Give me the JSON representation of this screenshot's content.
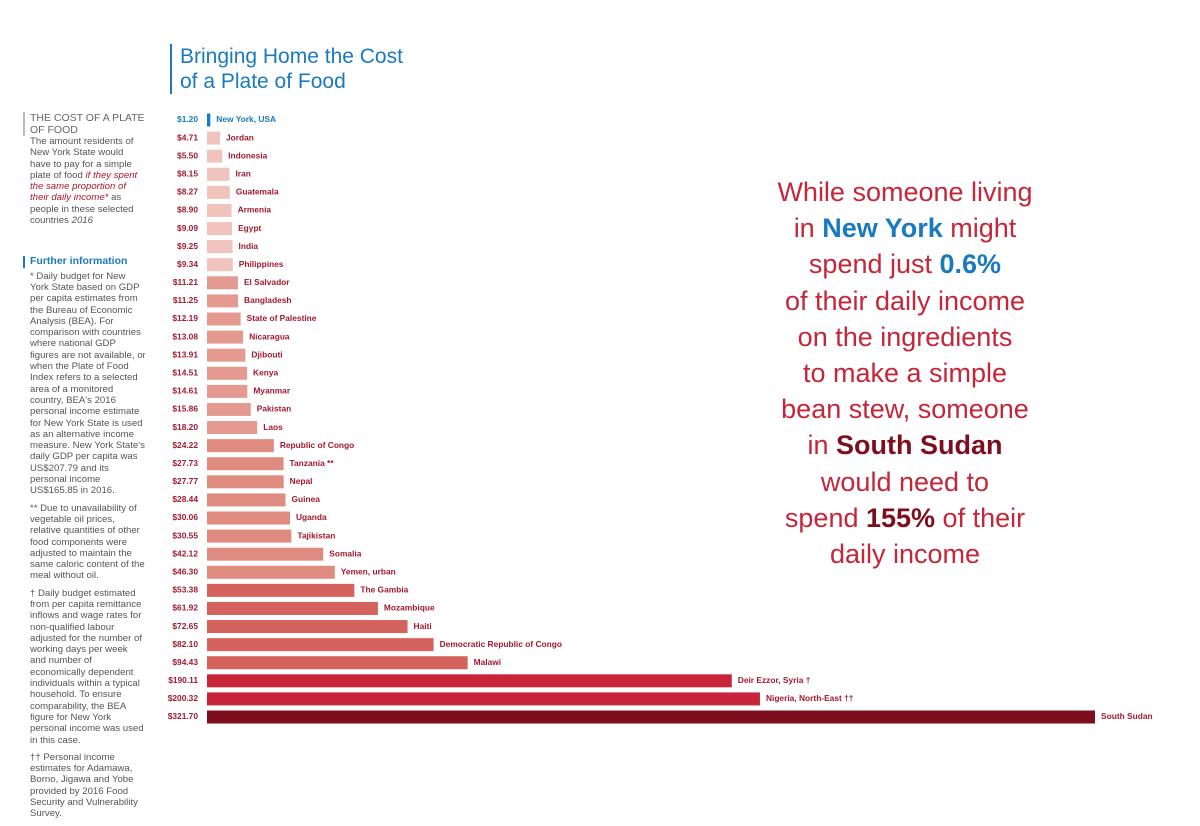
{
  "chart_data": {
    "type": "bar",
    "orientation": "horizontal",
    "title_lines": [
      "Bringing Home the Cost",
      "of a Plate of Food"
    ],
    "categories": [
      "New York, USA",
      "Jordan",
      "Indonesia",
      "Iran",
      "Guatemala",
      "Armenia",
      "Egypt",
      "India",
      "Philippines",
      "El Salvador",
      "Bangladesh",
      "State of Palestine",
      "Nicaragua",
      "Djibouti",
      "Kenya",
      "Myanmar",
      "Pakistan",
      "Laos",
      "Republic of Congo",
      "Tanzania **",
      "Nepal",
      "Guinea",
      "Uganda",
      "Tajikistan",
      "Somalia",
      "Yemen, urban",
      "The Gambia",
      "Mozambique",
      "Haiti",
      "Democratic Republic of Congo",
      "Malawi",
      "Deir Ezzor, Syria †",
      "Nigeria, North-East ††",
      "South Sudan"
    ],
    "values": [
      1.2,
      4.71,
      5.5,
      8.15,
      8.27,
      8.9,
      9.09,
      9.25,
      9.34,
      11.21,
      11.25,
      12.19,
      13.08,
      13.91,
      14.51,
      14.61,
      15.86,
      18.2,
      24.22,
      27.73,
      27.77,
      28.44,
      30.06,
      30.55,
      42.12,
      46.3,
      53.38,
      61.92,
      72.65,
      82.1,
      94.43,
      190.11,
      200.32,
      321.7
    ],
    "value_labels": [
      "$1.20",
      "$4.71",
      "$5.50",
      "$8.15",
      "$8.27",
      "$8.90",
      "$9.09",
      "$9.25",
      "$9.34",
      "$11.21",
      "$11.25",
      "$12.19",
      "$13.08",
      "$13.91",
      "$14.51",
      "$14.61",
      "$15.86",
      "$18.20",
      "$24.22",
      "$27.73",
      "$27.77",
      "$28.44",
      "$30.06",
      "$30.55",
      "$42.12",
      "$46.30",
      "$53.38",
      "$61.92",
      "$72.65",
      "$82.10",
      "$94.43",
      "$190.11",
      "$200.32",
      "$321.70"
    ],
    "colors": [
      "#1a7abf",
      "#f0c3bc",
      "#f0c3bc",
      "#f0c3bc",
      "#f0c3bc",
      "#f0c3bc",
      "#f0c3bc",
      "#f0c3bc",
      "#f0c3bc",
      "#e49a90",
      "#e49a90",
      "#e49a90",
      "#e49a90",
      "#e49a90",
      "#e49a90",
      "#e49a90",
      "#e49a90",
      "#e49a90",
      "#e08b80",
      "#e08b80",
      "#e08b80",
      "#e08b80",
      "#e08b80",
      "#e08b80",
      "#e08b80",
      "#e08b80",
      "#d4625d",
      "#d4625d",
      "#d4625d",
      "#d4625d",
      "#d4625d",
      "#c8253a",
      "#c8253a",
      "#7d0e1e"
    ],
    "label_colors": [
      "#1a7abf"
    ]
  },
  "sidebar": {
    "heading": "THE COST OF A PLATE OF FOOD",
    "text": "The amount residents of New York State would have to pay for a simple plate of food",
    "emphasis": "if they spent the same proportion of their daily income*",
    "text_end": "as people in these selected countries",
    "year": "2016",
    "further_title": "Further information",
    "notes": [
      "* Daily budget for New York State based on GDP per capita estimates from the Bureau of Economic Analysis (BEA). For comparison with countries where national GDP figures are not available, or when the Plate of Food Index refers to a selected area of a monitored country, BEA's 2016 personal income estimate for New York State is used as an alternative income measure. New York State's daily GDP per capita was US$207.79 and its personal income US$165.85 in 2016.",
      "** Due to unavailability of vegetable oil prices, relative quantities of other food components were adjusted to maintain the same caloric content of the meal without oil.",
      "† Daily budget estimated from per capita remittance inflows and wage rates for non-qualified labour adjusted for the number of working days per week and number of economically dependent individuals within a typical household. To ensure comparability, the BEA figure for New York personal income was used in this case.",
      "†† Personal income estimates for Adamawa, Borno, Jigawa and Yobe provided by 2016 Food Security and Vulnerability Survey."
    ]
  },
  "statement": {
    "l1": "While someone living",
    "l2a": "in ",
    "l2b": "New York",
    "l2c": " might",
    "l3a": "spend just ",
    "l3b": "0.6%",
    "l4": "of their daily income",
    "l5": "on the ingredients",
    "l6": "to make a simple",
    "l7": "bean stew, someone",
    "l8a": "in ",
    "l8b": "South Sudan",
    "l9": "would need to",
    "l10a": "spend ",
    "l10b": "155%",
    "l10c": " of their",
    "l11": "daily income"
  }
}
